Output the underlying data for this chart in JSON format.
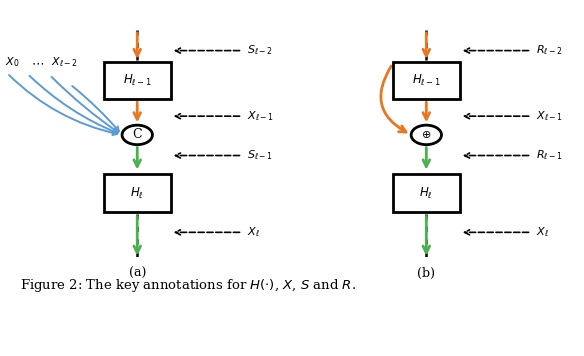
{
  "fig_width": 5.84,
  "fig_height": 3.56,
  "bg_color": "#ffffff",
  "orange": "#E87722",
  "green": "#4CAF50",
  "blue": "#5B9BD5",
  "black": "#000000",
  "caption_prefix": "Figure 2: The key annotations for ",
  "label_a": "(a)",
  "label_b": "(b)"
}
